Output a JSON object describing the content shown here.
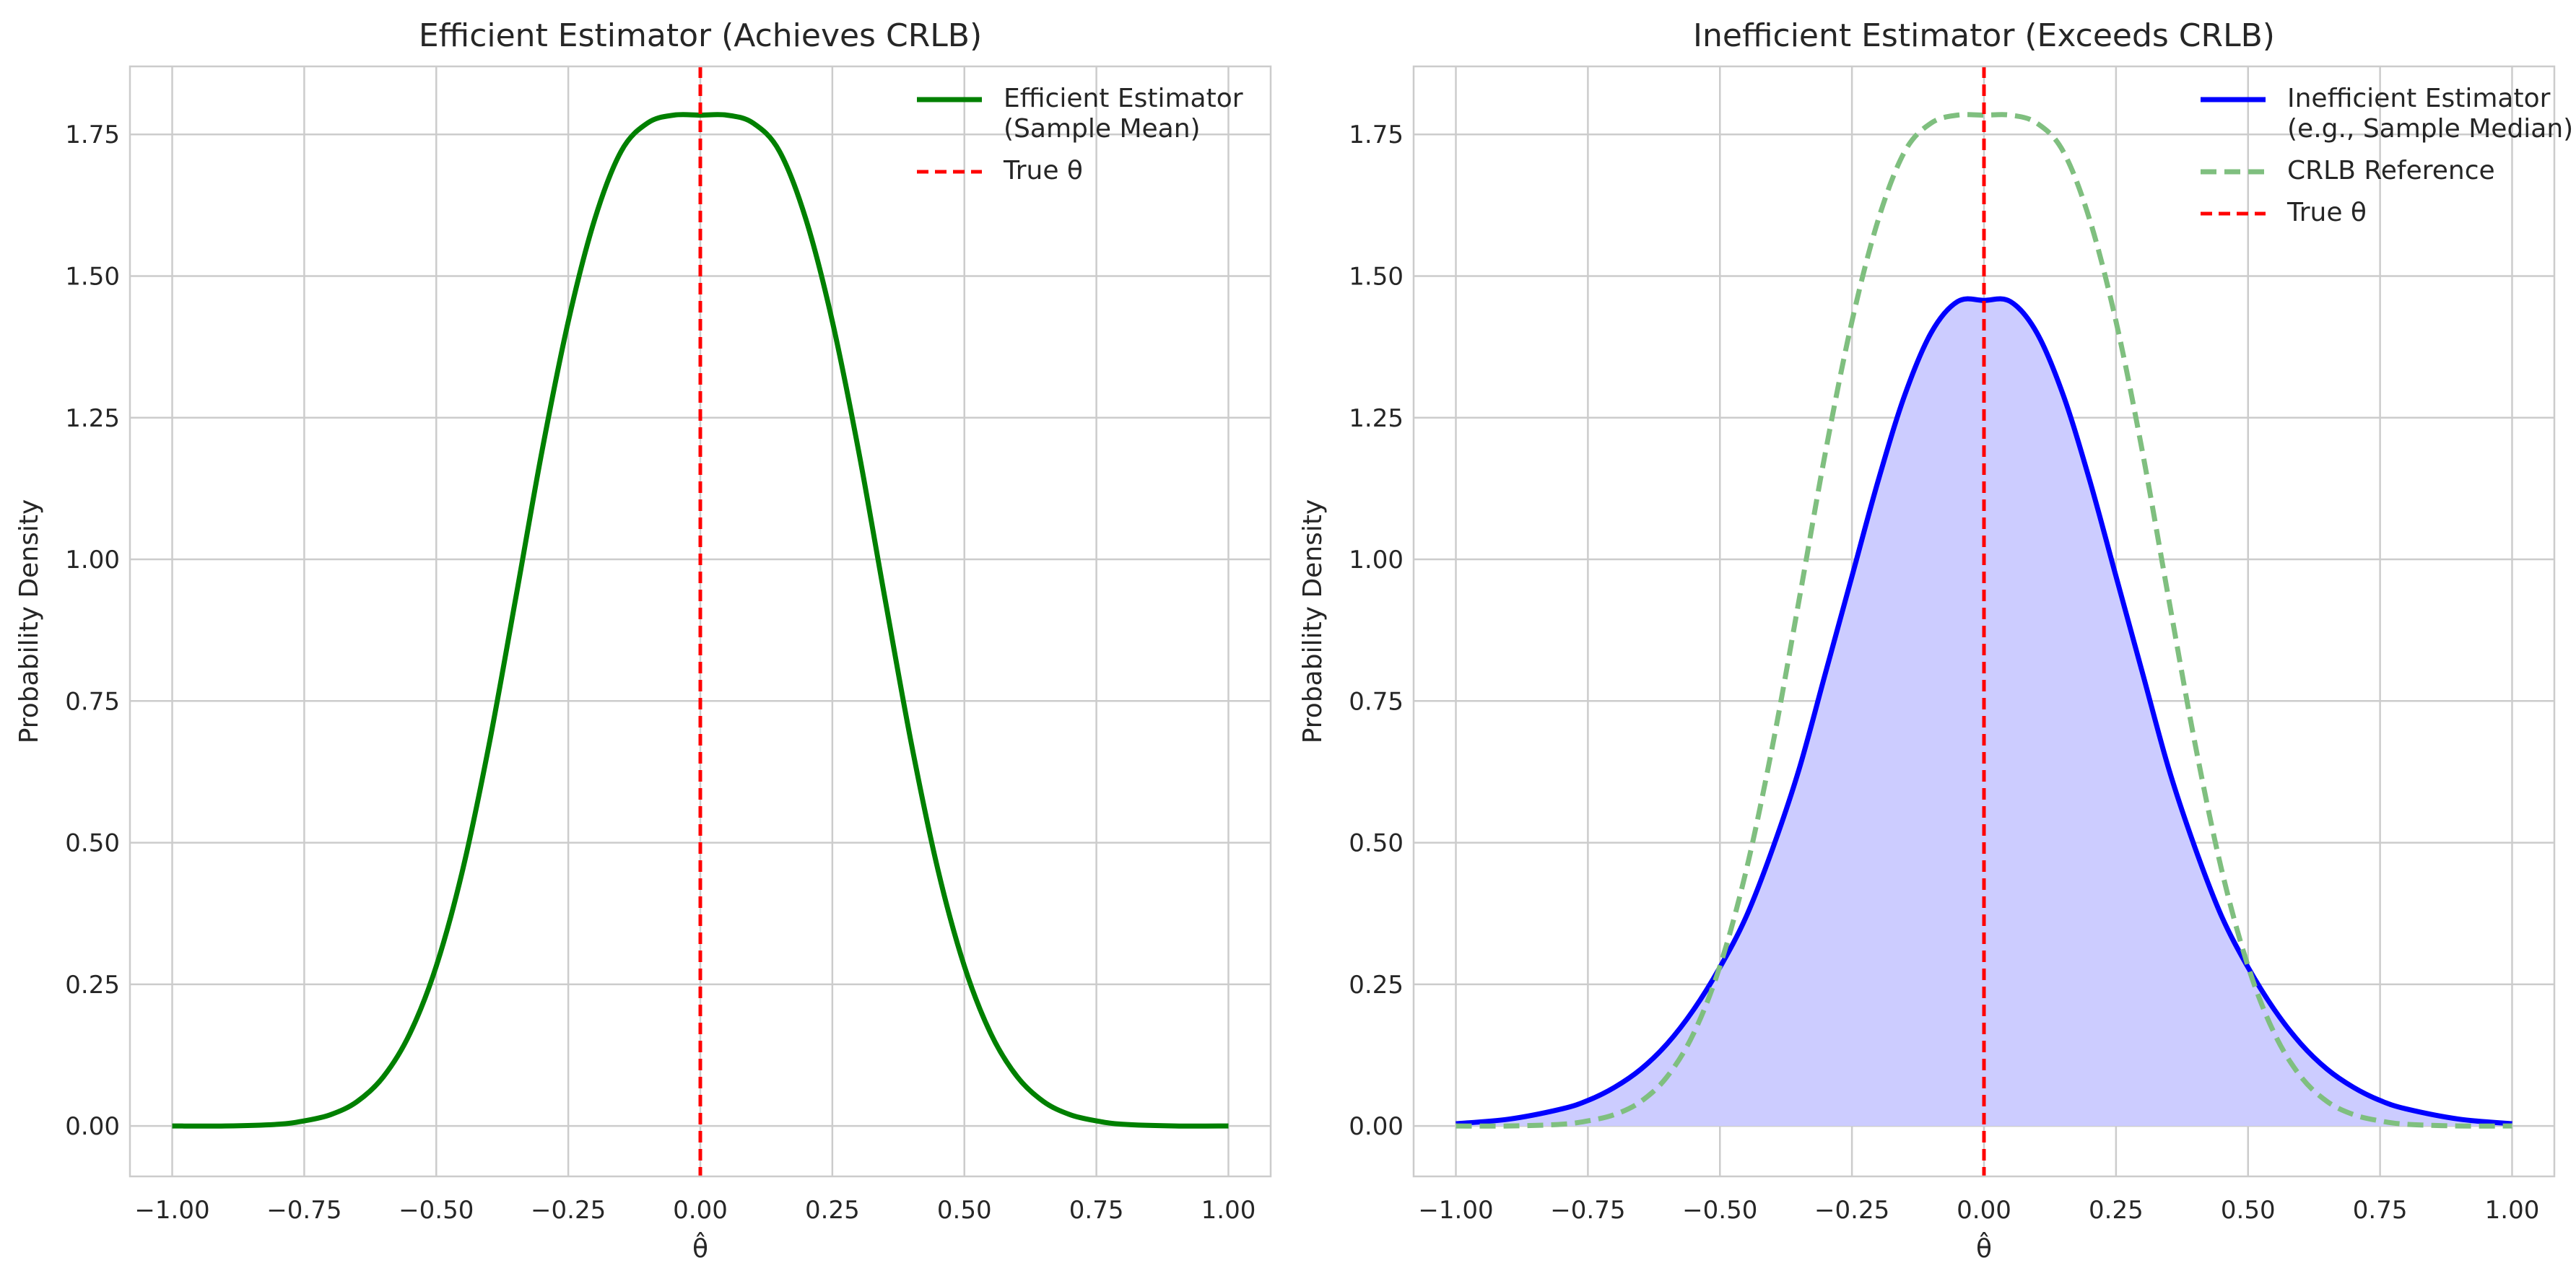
{
  "chart_data": [
    {
      "type": "line",
      "title": "Efficient Estimator (Achieves CRLB)",
      "xlabel": "θ̂",
      "ylabel": "Probability Density",
      "xlim": [
        -1.08,
        1.08
      ],
      "ylim": [
        -0.089,
        1.87
      ],
      "xticks": [
        -1.0,
        -0.75,
        -0.5,
        -0.25,
        0.0,
        0.25,
        0.5,
        0.75,
        1.0
      ],
      "xtick_labels": [
        "−1.00",
        "−0.75",
        "−0.50",
        "−0.25",
        "0.00",
        "0.25",
        "0.50",
        "0.75",
        "1.00"
      ],
      "yticks": [
        0.0,
        0.25,
        0.5,
        0.75,
        1.0,
        1.25,
        1.5,
        1.75
      ],
      "ytick_labels": [
        "0.00",
        "0.25",
        "0.50",
        "0.75",
        "1.00",
        "1.25",
        "1.50",
        "1.75"
      ],
      "grid": true,
      "legend_position": "top-right",
      "series": [
        {
          "name": "Efficient Estimator\n(Sample Mean)",
          "style": "solid",
          "color": "#008000",
          "fill": false,
          "x": [
            -1.0,
            -0.9,
            -0.8,
            -0.75,
            -0.7,
            -0.65,
            -0.6,
            -0.55,
            -0.5,
            -0.45,
            -0.4,
            -0.35,
            -0.3,
            -0.25,
            -0.2,
            -0.15,
            -0.1,
            -0.05,
            0.0,
            0.05,
            0.1,
            0.15,
            0.2,
            0.25,
            0.3,
            0.35,
            0.4,
            0.45,
            0.5,
            0.55,
            0.6,
            0.65,
            0.7,
            0.75,
            0.8,
            0.9,
            1.0
          ],
          "y": [
            0.0,
            0.0,
            0.003,
            0.009,
            0.02,
            0.043,
            0.087,
            0.163,
            0.282,
            0.452,
            0.673,
            0.929,
            1.19,
            1.42,
            1.6,
            1.72,
            1.77,
            1.784,
            1.784,
            1.784,
            1.77,
            1.72,
            1.6,
            1.42,
            1.19,
            0.929,
            0.673,
            0.452,
            0.282,
            0.163,
            0.087,
            0.043,
            0.02,
            0.009,
            0.003,
            0.0,
            0.0
          ]
        },
        {
          "name": "True θ",
          "style": "dashed",
          "color": "#ff0000",
          "vertical_line_x": 0.0
        }
      ]
    },
    {
      "type": "area",
      "title": "Inefficient Estimator (Exceeds CRLB)",
      "xlabel": "θ̂",
      "ylabel": "Probability Density",
      "xlim": [
        -1.08,
        1.08
      ],
      "ylim": [
        -0.089,
        1.87
      ],
      "xticks": [
        -1.0,
        -0.75,
        -0.5,
        -0.25,
        0.0,
        0.25,
        0.5,
        0.75,
        1.0
      ],
      "xtick_labels": [
        "−1.00",
        "−0.75",
        "−0.50",
        "−0.25",
        "0.00",
        "0.25",
        "0.50",
        "0.75",
        "1.00"
      ],
      "yticks": [
        0.0,
        0.25,
        0.5,
        0.75,
        1.0,
        1.25,
        1.5,
        1.75
      ],
      "ytick_labels": [
        "0.00",
        "0.25",
        "0.50",
        "0.75",
        "1.00",
        "1.25",
        "1.50",
        "1.75"
      ],
      "grid": true,
      "legend_position": "top-right",
      "series": [
        {
          "name": "Inefficient Estimator\n(e.g., Sample Median)",
          "style": "solid",
          "color": "#0000ff",
          "fill": true,
          "fill_color": "#ccccff",
          "x": [
            -1.0,
            -0.9,
            -0.8,
            -0.75,
            -0.7,
            -0.65,
            -0.6,
            -0.55,
            -0.5,
            -0.45,
            -0.4,
            -0.35,
            -0.3,
            -0.25,
            -0.2,
            -0.15,
            -0.1,
            -0.05,
            0.0,
            0.05,
            0.1,
            0.15,
            0.2,
            0.25,
            0.3,
            0.35,
            0.4,
            0.45,
            0.5,
            0.55,
            0.6,
            0.65,
            0.7,
            0.75,
            0.8,
            0.9,
            1.0
          ],
          "y": [
            0.004,
            0.012,
            0.03,
            0.045,
            0.068,
            0.1,
            0.145,
            0.205,
            0.28,
            0.37,
            0.49,
            0.63,
            0.8,
            0.97,
            1.14,
            1.29,
            1.4,
            1.455,
            1.457,
            1.455,
            1.4,
            1.29,
            1.14,
            0.97,
            0.8,
            0.63,
            0.49,
            0.37,
            0.28,
            0.205,
            0.145,
            0.1,
            0.068,
            0.045,
            0.03,
            0.012,
            0.004
          ]
        },
        {
          "name": "CRLB Reference",
          "style": "dashed",
          "color": "#7fbf7f",
          "fill": false,
          "x": [
            -1.0,
            -0.9,
            -0.8,
            -0.75,
            -0.7,
            -0.65,
            -0.6,
            -0.55,
            -0.5,
            -0.45,
            -0.4,
            -0.35,
            -0.3,
            -0.25,
            -0.2,
            -0.15,
            -0.1,
            -0.05,
            0.0,
            0.05,
            0.1,
            0.15,
            0.2,
            0.25,
            0.3,
            0.35,
            0.4,
            0.45,
            0.5,
            0.55,
            0.6,
            0.65,
            0.7,
            0.75,
            0.8,
            0.9,
            1.0
          ],
          "y": [
            0.0,
            0.0,
            0.003,
            0.009,
            0.02,
            0.043,
            0.087,
            0.163,
            0.282,
            0.452,
            0.673,
            0.929,
            1.19,
            1.42,
            1.6,
            1.72,
            1.77,
            1.784,
            1.784,
            1.784,
            1.77,
            1.72,
            1.6,
            1.42,
            1.19,
            0.929,
            0.673,
            0.452,
            0.282,
            0.163,
            0.087,
            0.043,
            0.02,
            0.009,
            0.003,
            0.0,
            0.0
          ]
        },
        {
          "name": "True θ",
          "style": "dashed",
          "color": "#ff0000",
          "vertical_line_x": 0.0
        }
      ]
    }
  ]
}
